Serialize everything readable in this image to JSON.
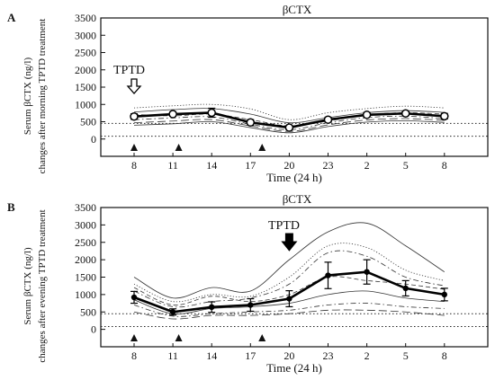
{
  "figure": {
    "panels": [
      "A",
      "B"
    ]
  },
  "chart_data": [
    {
      "panel": "A",
      "type": "line",
      "title": "βCTX",
      "ylabel": [
        "Serum βCTX (ng/l)",
        "changes after morning TPTD treatment"
      ],
      "xlabel": "Time (24 h)",
      "x_tick_labels": [
        "8",
        "11",
        "14",
        "17",
        "20",
        "23",
        "2",
        "5",
        "8"
      ],
      "y_ticks": [
        0,
        500,
        1000,
        1500,
        2000,
        2500,
        3000,
        3500
      ],
      "ylim": [
        -500,
        3500
      ],
      "reference_lines": [
        450,
        80
      ],
      "annotation": {
        "text": "TPTD",
        "x": 0,
        "arrow": "open-down"
      },
      "triangle_markers_x": [
        0,
        1.15,
        3.3
      ],
      "series": [
        {
          "role": "mean",
          "x": [
            0,
            1,
            2,
            3,
            4,
            5,
            6,
            7,
            8
          ],
          "values": [
            650,
            720,
            760,
            480,
            330,
            560,
            700,
            740,
            660
          ],
          "error": [
            80,
            60,
            130,
            80,
            50,
            70,
            70,
            60,
            80
          ],
          "marker": "open-circle"
        },
        {
          "role": "individual",
          "x": [
            0,
            1,
            2,
            3,
            4,
            5,
            6,
            7,
            8
          ],
          "values": [
            900,
            960,
            1000,
            870,
            560,
            760,
            880,
            950,
            900
          ],
          "style": "dotted"
        },
        {
          "role": "individual",
          "x": [
            0,
            1,
            2,
            3,
            4,
            5,
            6,
            7,
            8
          ],
          "values": [
            780,
            850,
            880,
            720,
            470,
            620,
            760,
            820,
            770
          ],
          "style": "solid"
        },
        {
          "role": "individual",
          "x": [
            0,
            1,
            2,
            3,
            4,
            5,
            6,
            7,
            8
          ],
          "values": [
            710,
            670,
            720,
            560,
            380,
            520,
            700,
            760,
            720
          ],
          "style": "dashed"
        },
        {
          "role": "individual",
          "x": [
            0,
            1,
            2,
            3,
            4,
            5,
            6,
            7,
            8
          ],
          "values": [
            560,
            610,
            640,
            430,
            270,
            470,
            620,
            660,
            590
          ],
          "style": "dashdot"
        },
        {
          "role": "individual",
          "x": [
            0,
            1,
            2,
            3,
            4,
            5,
            6,
            7,
            8
          ],
          "values": [
            470,
            520,
            560,
            380,
            220,
            410,
            550,
            590,
            540
          ],
          "style": "long-dash"
        },
        {
          "role": "individual",
          "x": [
            0,
            1,
            2,
            3,
            4,
            5,
            6,
            7,
            8
          ],
          "values": [
            400,
            440,
            500,
            330,
            180,
            360,
            490,
            530,
            480
          ],
          "style": "solid"
        }
      ]
    },
    {
      "panel": "B",
      "type": "line",
      "title": "βCTX",
      "ylabel": [
        "Serum βCTX (ng/l)",
        "changes after evening TPTD treatment"
      ],
      "xlabel": "Time (24 h)",
      "x_tick_labels": [
        "8",
        "11",
        "14",
        "17",
        "20",
        "23",
        "2",
        "5",
        "8"
      ],
      "y_ticks": [
        0,
        500,
        1000,
        1500,
        2000,
        2500,
        3000,
        3500
      ],
      "ylim": [
        -500,
        3500
      ],
      "reference_lines": [
        450,
        80
      ],
      "annotation": {
        "text": "TPTD",
        "x": 4,
        "arrow": "filled-down"
      },
      "triangle_markers_x": [
        0,
        1.15,
        3.3
      ],
      "series": [
        {
          "role": "mean",
          "x": [
            0,
            1,
            2,
            3,
            4,
            5,
            6,
            7,
            8
          ],
          "values": [
            920,
            500,
            640,
            700,
            880,
            1550,
            1650,
            1180,
            1000
          ],
          "error": [
            170,
            90,
            150,
            180,
            230,
            380,
            350,
            220,
            180
          ],
          "marker": "filled-circle"
        },
        {
          "role": "individual",
          "x": [
            0,
            1,
            2,
            3,
            4,
            5,
            6,
            7,
            8
          ],
          "values": [
            1500,
            900,
            1200,
            1100,
            2000,
            2800,
            3050,
            2400,
            1650
          ],
          "style": "solid"
        },
        {
          "role": "individual",
          "x": [
            0,
            1,
            2,
            3,
            4,
            5,
            6,
            7,
            8
          ],
          "values": [
            1300,
            800,
            1000,
            950,
            1500,
            2400,
            2350,
            1700,
            1400
          ],
          "style": "dotted"
        },
        {
          "role": "individual",
          "x": [
            0,
            1,
            2,
            3,
            4,
            5,
            6,
            7,
            8
          ],
          "values": [
            1100,
            650,
            800,
            900,
            1300,
            2200,
            2100,
            1500,
            1250
          ],
          "style": "dashdot"
        },
        {
          "role": "individual",
          "x": [
            0,
            1,
            2,
            3,
            4,
            5,
            6,
            7,
            8
          ],
          "values": [
            1200,
            700,
            950,
            800,
            1000,
            1500,
            1400,
            1300,
            1150
          ],
          "style": "dashed"
        },
        {
          "role": "individual",
          "x": [
            0,
            1,
            2,
            3,
            4,
            5,
            6,
            7,
            8
          ],
          "values": [
            850,
            450,
            600,
            650,
            750,
            1000,
            1100,
            900,
            800
          ],
          "style": "solid"
        },
        {
          "role": "individual",
          "x": [
            0,
            1,
            2,
            3,
            4,
            5,
            6,
            7,
            8
          ],
          "values": [
            700,
            380,
            450,
            500,
            550,
            700,
            750,
            650,
            600
          ],
          "style": "dashdot"
        },
        {
          "role": "individual",
          "x": [
            0,
            1,
            2,
            3,
            4,
            5,
            6,
            7,
            8
          ],
          "values": [
            500,
            300,
            400,
            400,
            450,
            550,
            550,
            500,
            400
          ],
          "style": "long-dash"
        }
      ]
    }
  ]
}
